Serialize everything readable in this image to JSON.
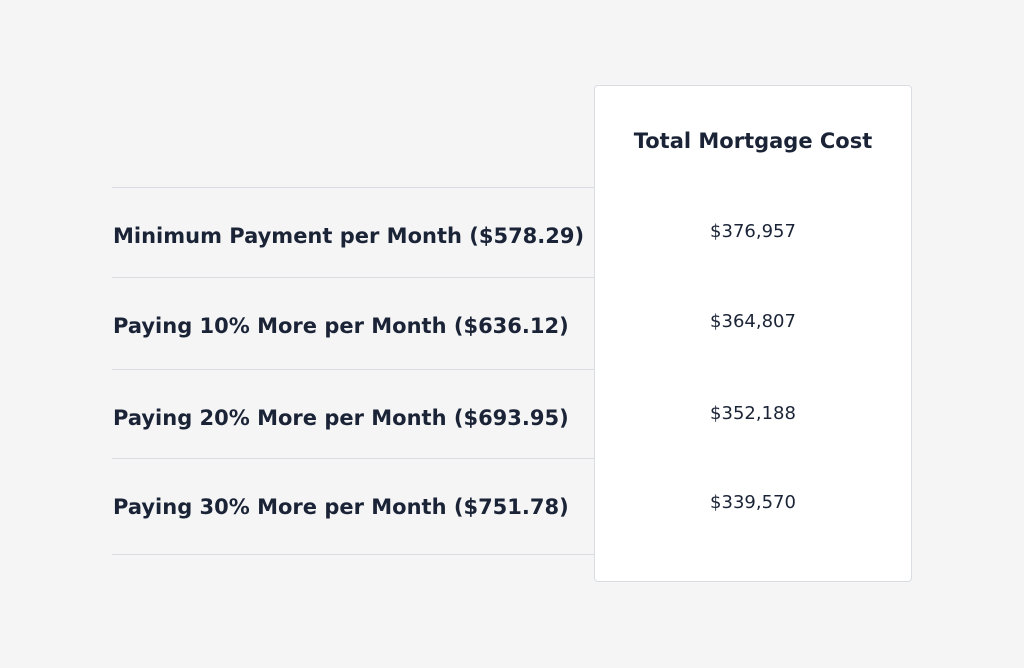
{
  "table": {
    "header": "Total Mortgage Cost",
    "rows": [
      [
        "Minimum Payment per Month ($578.29)",
        "$376,957"
      ],
      [
        "Paying 10% More per Month ($636.12)",
        "$364,807"
      ],
      [
        "Paying 20% More per Month ($693.95)",
        "$352,188"
      ],
      [
        "Paying 30% More per Month ($751.78)",
        "$339,570"
      ]
    ]
  }
}
